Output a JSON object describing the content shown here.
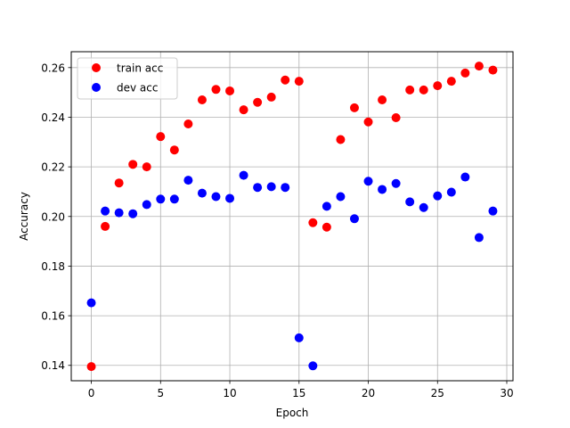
{
  "chart_data": {
    "type": "scatter",
    "title": "",
    "xlabel": "Epoch",
    "ylabel": "Accuracy",
    "xlim": [
      -1.45,
      30.45
    ],
    "ylim": [
      0.1338,
      0.2664
    ],
    "xticks": [
      0,
      5,
      10,
      15,
      20,
      25,
      30
    ],
    "yticks": [
      0.14,
      0.16,
      0.18,
      0.2,
      0.22,
      0.24,
      0.26
    ],
    "ytick_labels": [
      "0.14",
      "0.16",
      "0.18",
      "0.20",
      "0.22",
      "0.24",
      "0.26"
    ],
    "grid": true,
    "legend_position": "upper-left",
    "x": [
      0,
      1,
      2,
      3,
      4,
      5,
      6,
      7,
      8,
      9,
      10,
      11,
      12,
      13,
      14,
      15,
      16,
      17,
      18,
      19,
      20,
      21,
      22,
      23,
      24,
      25,
      26,
      27,
      28,
      29
    ],
    "series": [
      {
        "name": "train acc",
        "color": "#ff0000",
        "values": [
          0.1395,
          0.196,
          0.2135,
          0.221,
          0.22,
          0.2322,
          0.2268,
          0.2373,
          0.247,
          0.2512,
          0.2506,
          0.243,
          0.246,
          0.2481,
          0.255,
          0.2545,
          0.1975,
          0.1957,
          0.231,
          0.2438,
          0.2381,
          0.247,
          0.2398,
          0.251,
          0.251,
          0.2527,
          0.2545,
          0.2578,
          0.2606,
          0.259
        ]
      },
      {
        "name": "dev acc",
        "color": "#0000ff",
        "values": [
          0.1652,
          0.2022,
          0.2015,
          0.2011,
          0.2048,
          0.207,
          0.207,
          0.2146,
          0.2094,
          0.208,
          0.2073,
          0.2166,
          0.2117,
          0.212,
          0.2117,
          0.1511,
          0.1398,
          0.2041,
          0.208,
          0.1991,
          0.2142,
          0.2109,
          0.2133,
          0.2059,
          0.2036,
          0.2083,
          0.2098,
          0.2159,
          0.1915,
          0.2022
        ]
      }
    ]
  }
}
